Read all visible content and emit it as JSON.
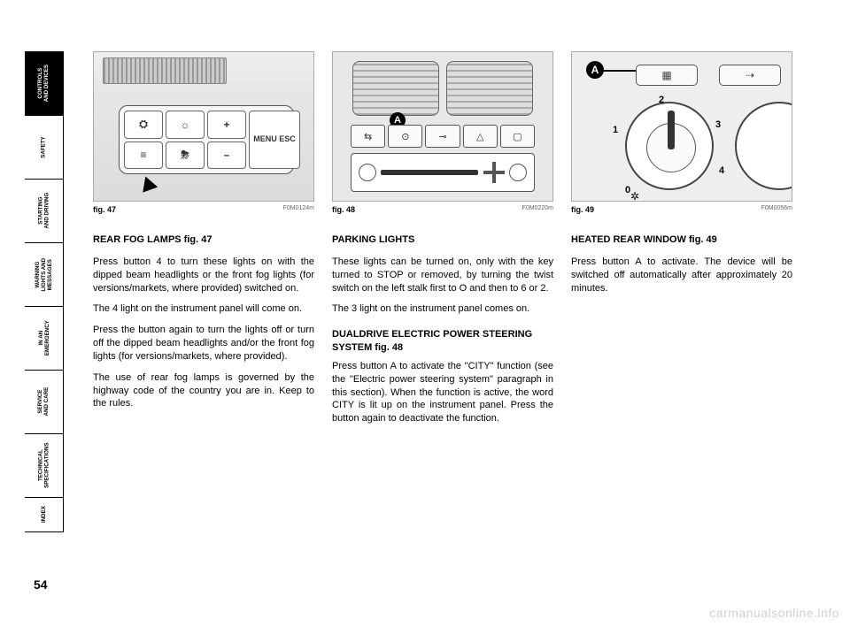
{
  "page_number": "54",
  "watermark": "carmanualsonline.info",
  "tabs": [
    {
      "label": "CONTROLS\nAND DEVICES",
      "active": true
    },
    {
      "label": "SAFETY",
      "active": false
    },
    {
      "label": "STARTING\nAND DRIVING",
      "active": false
    },
    {
      "label": "WARNING\nLIGHTS AND\nMESSAGES",
      "active": false
    },
    {
      "label": "IN AN\nEMERGENCY",
      "active": false
    },
    {
      "label": "SERVICE\nAND CARE",
      "active": false
    },
    {
      "label": "TECHNICAL\nSPECIFICATIONS",
      "active": false
    },
    {
      "label": "INDEX",
      "active": false
    }
  ],
  "figures": [
    {
      "caption": "fig. 47",
      "code": "F0M0124m",
      "label": ""
    },
    {
      "caption": "fig. 48",
      "code": "F0M0220m",
      "label": "A"
    },
    {
      "caption": "fig. 49",
      "code": "F0M0056m",
      "label": "A"
    }
  ],
  "fig47_buttons": [
    "⛭",
    "☼",
    "+",
    "≡",
    "⛈",
    "–"
  ],
  "fig47_menu": "MENU\nESC",
  "fig48_buttons": [
    "⇆",
    "⊙",
    "⊸",
    "△",
    "▢"
  ],
  "fig49_topbuttons": [
    "▦",
    "⇢"
  ],
  "fig49_dial": {
    "numbers": [
      "0",
      "1",
      "2",
      "3",
      "4"
    ],
    "fan_icon": "✲"
  },
  "columns": [
    {
      "heading": "REAR FOG LAMPS fig. 47",
      "paragraphs": [
        "Press button 4 to turn these lights on with the dipped beam headlights or the front fog lights (for versions/markets, where provided) switched on.",
        "The 4 light on the instrument panel will come on.",
        "Press the button again to turn the lights off or turn off the dipped beam headlights and/or the front fog lights (for versions/markets, where provided).",
        "The use of rear fog lamps is governed by the highway code of the country you are in. Keep to the rules."
      ],
      "subsections": []
    },
    {
      "heading": "PARKING LIGHTS",
      "paragraphs": [
        "These lights can be turned on, only with the key turned to STOP or removed, by turning the twist switch on the left stalk first to O and then to 6 or 2.",
        "The 3 light on the instrument panel comes on."
      ],
      "subsections": [
        {
          "heading": "DUALDRIVE ELECTRIC POWER STEERING SYSTEM fig. 48",
          "paragraphs": [
            "Press button A to activate the \"CITY\" function (see the \"Electric power steering system\" paragraph in this section). When the function is active, the word CITY is lit up on the instrument panel. Press the button again to deactivate the function."
          ]
        }
      ]
    },
    {
      "heading": "HEATED REAR WINDOW fig. 49",
      "paragraphs": [
        "Press button A to activate. The device will be switched off automatically after approximately 20 minutes."
      ],
      "subsections": []
    }
  ]
}
